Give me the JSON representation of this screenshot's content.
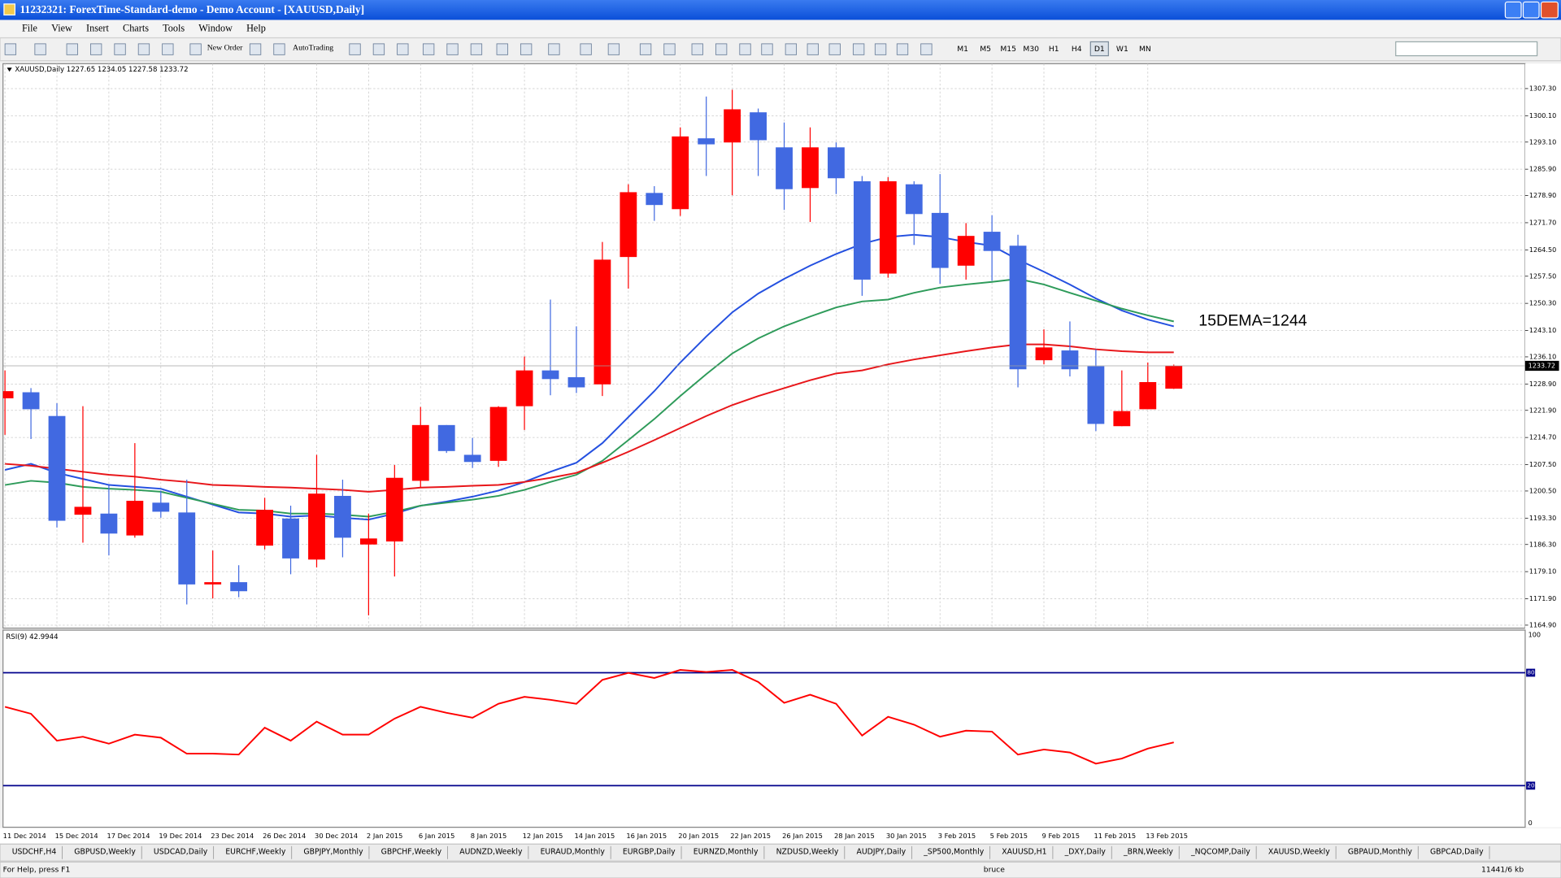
{
  "window": {
    "title": "11232321: ForexTime-Standard-demo - Demo Account - [XAUUSD,Daily]",
    "menu": [
      "File",
      "View",
      "Insert",
      "Charts",
      "Tools",
      "Window",
      "Help"
    ]
  },
  "toolbar": {
    "new_order": "New Order",
    "auto_trading": "AutoTrading",
    "timeframes": [
      "M1",
      "M5",
      "M15",
      "M30",
      "H1",
      "H4",
      "D1",
      "W1",
      "MN"
    ],
    "active_timeframe": "D1"
  },
  "chart_data": [
    {
      "type": "candlestick",
      "title": "XAUUSD,Daily  1227.65 1234.05 1227.58 1233.72",
      "categories": [
        "11 Dec 2014",
        null,
        "15 Dec 2014",
        null,
        "17 Dec 2014",
        null,
        "19 Dec 2014",
        null,
        "23 Dec 2014",
        null,
        "26 Dec 2014",
        null,
        "30 Dec 2014",
        null,
        "2 Jan 2015",
        null,
        "6 Jan 2015",
        null,
        "8 Jan 2015",
        null,
        "12 Jan 2015",
        null,
        "14 Jan 2015",
        null,
        "16 Jan 2015",
        null,
        "20 Jan 2015",
        null,
        "22 Jan 2015",
        null,
        "26 Jan 2015",
        null,
        "28 Jan 2015",
        null,
        "30 Jan 2015",
        null,
        "3 Feb 2015",
        null,
        "5 Feb 2015",
        null,
        "9 Feb 2015",
        null,
        "11 Feb 2015",
        null,
        "13 Feb 2015",
        null
      ],
      "open": [
        1225.1,
        1226.7,
        1220.4,
        1194.2,
        1194.5,
        1188.7,
        1197.4,
        1194.8,
        1175.7,
        1176.3,
        1186.0,
        1193.2,
        1182.3,
        1199.2,
        1186.3,
        1187.1,
        1203.2,
        1218.0,
        1210.1,
        1208.5,
        1223.0,
        1232.5,
        1230.7,
        1228.8,
        1262.6,
        1279.6,
        1275.3,
        1294.1,
        1293.0,
        1301.0,
        1291.7,
        1280.9,
        1291.7,
        1282.7,
        1258.2,
        1281.9,
        1274.3,
        1260.3,
        1269.3,
        1265.6,
        1235.2,
        1237.8,
        1233.6,
        1217.7,
        1222.2,
        1227.65
      ],
      "high": [
        1232.5,
        1227.8,
        1223.8,
        1223.0,
        1201.9,
        1213.2,
        1200.6,
        1203.5,
        1184.7,
        1180.8,
        1198.7,
        1196.6,
        1210.1,
        1203.5,
        1194.5,
        1207.4,
        1222.8,
        1218.0,
        1214.6,
        1223.0,
        1236.2,
        1251.3,
        1244.2,
        1266.6,
        1281.9,
        1281.4,
        1297.0,
        1305.2,
        1307.0,
        1302.0,
        1298.3,
        1297.0,
        1293.0,
        1284.1,
        1283.8,
        1282.7,
        1284.6,
        1271.6,
        1273.7,
        1268.5,
        1243.4,
        1245.5,
        1238.1,
        1232.5,
        1234.6,
        1234.05
      ],
      "low": [
        1215.4,
        1214.3,
        1190.8,
        1186.8,
        1183.4,
        1188.1,
        1193.4,
        1170.4,
        1172.0,
        1172.3,
        1185.0,
        1178.4,
        1180.2,
        1182.9,
        1167.5,
        1177.8,
        1201.4,
        1210.6,
        1206.6,
        1206.9,
        1216.7,
        1225.9,
        1226.5,
        1225.7,
        1254.2,
        1272.2,
        1273.5,
        1284.1,
        1279.0,
        1284.1,
        1275.1,
        1271.9,
        1279.3,
        1252.3,
        1257.1,
        1265.8,
        1255.5,
        1256.6,
        1256.3,
        1228.0,
        1234.1,
        1230.9,
        1216.4,
        1217.7,
        1222.2,
        1227.58
      ],
      "close": [
        1227.0,
        1222.2,
        1192.6,
        1196.3,
        1189.2,
        1197.9,
        1195.0,
        1175.7,
        1176.3,
        1173.9,
        1195.5,
        1182.6,
        1199.8,
        1188.1,
        1187.9,
        1204.0,
        1218.0,
        1211.1,
        1208.2,
        1222.8,
        1232.5,
        1230.2,
        1228.0,
        1261.9,
        1279.8,
        1276.4,
        1294.6,
        1292.5,
        1301.8,
        1293.6,
        1280.6,
        1291.7,
        1283.5,
        1256.6,
        1282.7,
        1274.0,
        1259.7,
        1268.2,
        1264.2,
        1232.8,
        1238.6,
        1232.8,
        1218.3,
        1221.7,
        1229.4,
        1233.72
      ],
      "up_color": "#ff0000",
      "down_color": "#4169e1",
      "series": [
        {
          "color": "#2450e0",
          "values": [
            1206.1,
            1207.7,
            1205.3,
            1203.7,
            1202.1,
            1201.6,
            1201.1,
            1199.0,
            1196.9,
            1194.8,
            1194.5,
            1193.7,
            1194.0,
            1193.4,
            1192.9,
            1194.5,
            1196.6,
            1197.7,
            1199.0,
            1200.6,
            1202.9,
            1205.6,
            1208.0,
            1213.2,
            1220.1,
            1227.0,
            1234.6,
            1241.5,
            1247.9,
            1252.9,
            1256.8,
            1260.3,
            1263.4,
            1266.1,
            1267.9,
            1268.5,
            1267.9,
            1266.6,
            1265.6,
            1261.9,
            1258.7,
            1255.3,
            1251.6,
            1248.4,
            1246.0,
            1244.2
          ]
        },
        {
          "color": "#2e9b5a",
          "values": [
            1202.1,
            1203.2,
            1202.7,
            1201.6,
            1201.1,
            1200.8,
            1200.3,
            1198.7,
            1197.1,
            1195.5,
            1195.3,
            1194.5,
            1194.5,
            1194.2,
            1193.7,
            1195.0,
            1196.6,
            1197.4,
            1198.2,
            1199.2,
            1200.8,
            1202.9,
            1204.8,
            1208.5,
            1214.0,
            1219.6,
            1225.7,
            1231.5,
            1237.0,
            1241.0,
            1244.2,
            1246.8,
            1249.2,
            1250.8,
            1251.3,
            1253.1,
            1254.5,
            1255.3,
            1256.0,
            1256.8,
            1255.3,
            1253.1,
            1251.0,
            1248.9,
            1247.1,
            1245.5
          ]
        },
        {
          "color": "#e8161a",
          "values": [
            1207.7,
            1207.2,
            1206.4,
            1205.6,
            1204.8,
            1204.3,
            1203.5,
            1202.9,
            1202.1,
            1201.9,
            1201.6,
            1201.4,
            1201.1,
            1200.8,
            1200.3,
            1200.8,
            1201.4,
            1201.6,
            1201.9,
            1202.1,
            1202.9,
            1204.0,
            1205.3,
            1208.0,
            1210.9,
            1214.0,
            1217.2,
            1220.4,
            1223.3,
            1225.7,
            1227.8,
            1229.9,
            1231.7,
            1232.5,
            1234.1,
            1235.4,
            1236.5,
            1237.6,
            1238.6,
            1239.4,
            1239.4,
            1238.9,
            1238.1,
            1237.6,
            1237.3,
            1237.3
          ]
        }
      ],
      "annotation": "15DEMA=1244",
      "ylim": [
        1164.1,
        1313.9
      ],
      "yticks": [
        {
          "value": 1164.9,
          "label": "1164.90"
        },
        {
          "value": 1171.9,
          "label": "1171.90"
        },
        {
          "value": 1179.1,
          "label": "1179.10"
        },
        {
          "value": 1186.3,
          "label": "1186.30"
        },
        {
          "value": 1193.3,
          "label": "1193.30"
        },
        {
          "value": 1200.5,
          "label": "1200.50"
        },
        {
          "value": 1207.5,
          "label": "1207.50"
        },
        {
          "value": 1214.7,
          "label": "1214.70"
        },
        {
          "value": 1221.9,
          "label": "1221.90"
        },
        {
          "value": 1228.9,
          "label": "1228.90"
        },
        {
          "value": 1236.1,
          "label": "1236.10"
        },
        {
          "value": 1243.1,
          "label": "1243.10"
        },
        {
          "value": 1250.3,
          "label": "1250.30"
        },
        {
          "value": 1257.5,
          "label": "1257.50"
        },
        {
          "value": 1264.5,
          "label": "1264.50"
        },
        {
          "value": 1271.7,
          "label": "1271.70"
        },
        {
          "value": 1278.9,
          "label": "1278.90"
        },
        {
          "value": 1285.9,
          "label": "1285.90"
        },
        {
          "value": 1293.1,
          "label": "1293.10"
        },
        {
          "value": 1300.1,
          "label": "1300.10"
        },
        {
          "value": 1307.3,
          "label": "1307.30"
        }
      ],
      "grid": true
    },
    {
      "type": "line",
      "title": "RSI(9) 42.9944",
      "color": "#ff0000",
      "values": [
        61.9,
        58.2,
        43.9,
        46.0,
        42.3,
        47.1,
        45.5,
        37.0,
        37.0,
        36.5,
        50.8,
        43.9,
        54.0,
        47.1,
        47.1,
        55.6,
        61.9,
        58.7,
        56.1,
        63.5,
        67.2,
        65.6,
        63.5,
        76.2,
        79.9,
        77.2,
        81.5,
        80.4,
        81.5,
        75.1,
        64.0,
        68.3,
        63.5,
        46.6,
        56.6,
        52.4,
        46.0,
        49.2,
        48.7,
        36.5,
        39.2,
        37.6,
        31.7,
        34.4,
        39.7,
        42.9944
      ],
      "ylim": [
        -2.1,
        102.1
      ],
      "yticks": [
        0,
        100
      ],
      "levels": [
        20,
        80
      ],
      "level_color": "#00008b"
    }
  ],
  "tabs": [
    "USDCHF,H4",
    "GBPUSD,Weekly",
    "USDCAD,Daily",
    "EURCHF,Weekly",
    "GBPJPY,Monthly",
    "GBPCHF,Weekly",
    "AUDNZD,Weekly",
    "EURAUD,Monthly",
    "EURGBP,Daily",
    "EURNZD,Monthly",
    "NZDUSD,Weekly",
    "AUDJPY,Daily",
    "_SP500,Monthly",
    "XAUUSD,H1",
    "_DXY,Daily",
    "_BRN,Weekly",
    "_NQCOMP,Daily",
    "XAUUSD,Weekly",
    "GBPAUD,Monthly",
    "GBPCAD,Daily"
  ],
  "status": {
    "help": "For Help, press F1",
    "profile": "bruce",
    "traffic": "11441/6 kb"
  }
}
